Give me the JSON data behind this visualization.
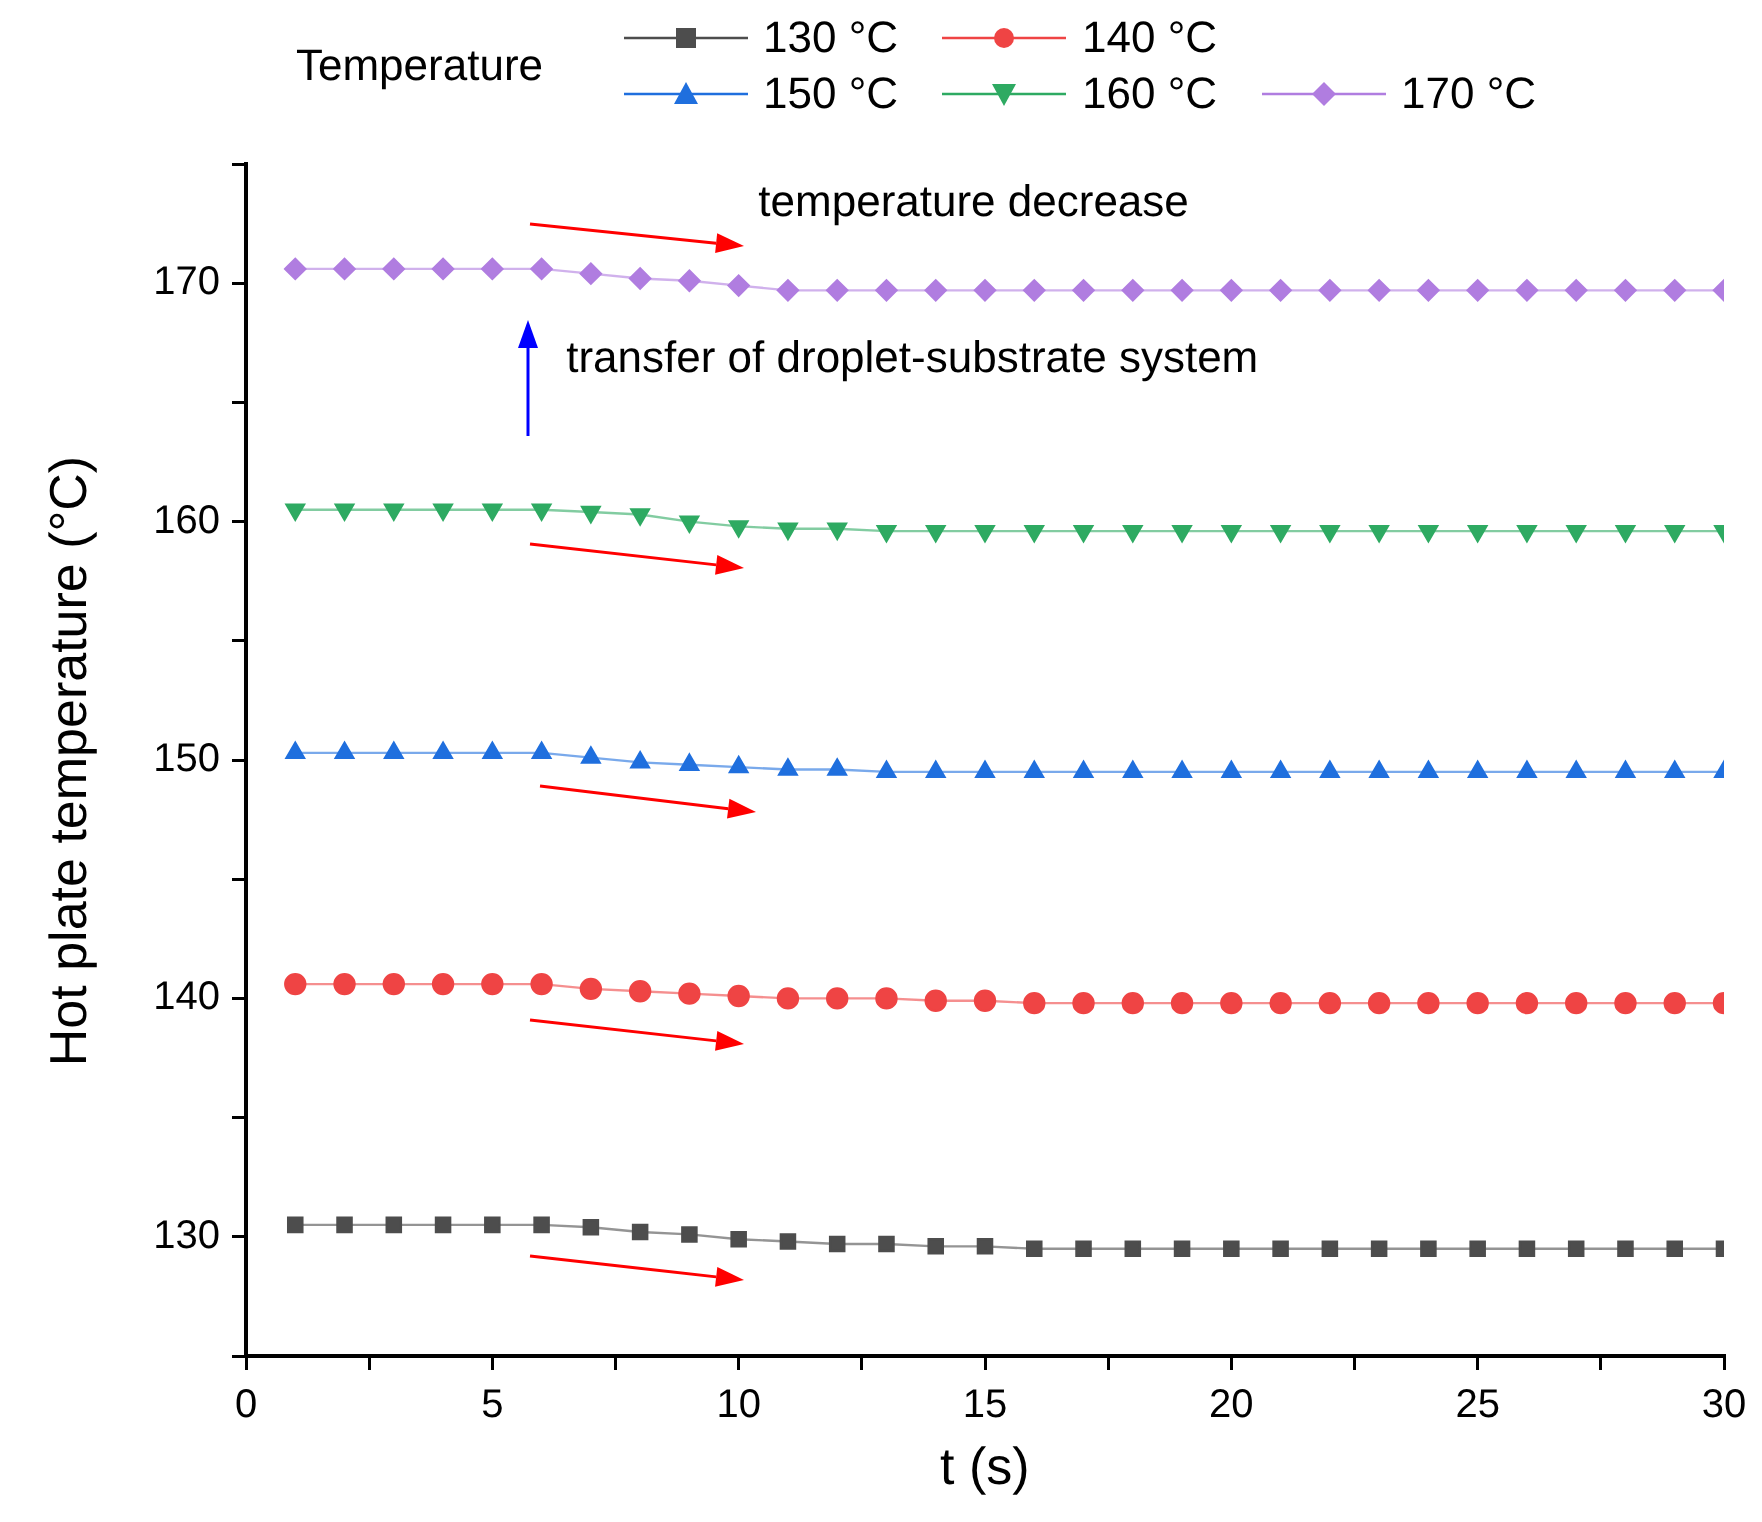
{
  "chart_data": {
    "type": "line",
    "xlabel": "t (s)",
    "ylabel": "Hot plate temperature (°C)",
    "legend_title": "Temperature",
    "legend": "top",
    "x": [
      1,
      2,
      3,
      4,
      5,
      6,
      7,
      8,
      9,
      10,
      11,
      12,
      13,
      14,
      15,
      16,
      17,
      18,
      19,
      20,
      21,
      22,
      23,
      24,
      25,
      26,
      27,
      28,
      29,
      30
    ],
    "series": [
      {
        "name": "130 °C",
        "color": "#4d4d4d",
        "marker": "square",
        "values": [
          130.5,
          130.5,
          130.5,
          130.5,
          130.5,
          130.5,
          130.4,
          130.2,
          130.1,
          129.9,
          129.8,
          129.7,
          129.7,
          129.6,
          129.6,
          129.5,
          129.5,
          129.5,
          129.5,
          129.5,
          129.5,
          129.5,
          129.5,
          129.5,
          129.5,
          129.5,
          129.5,
          129.5,
          129.5,
          129.5
        ]
      },
      {
        "name": "140 °C",
        "color": "#ef4444",
        "marker": "circle",
        "values": [
          140.6,
          140.6,
          140.6,
          140.6,
          140.6,
          140.6,
          140.4,
          140.3,
          140.2,
          140.1,
          140.0,
          140.0,
          140.0,
          139.9,
          139.9,
          139.8,
          139.8,
          139.8,
          139.8,
          139.8,
          139.8,
          139.8,
          139.8,
          139.8,
          139.8,
          139.8,
          139.8,
          139.8,
          139.8,
          139.8
        ]
      },
      {
        "name": "150 °C",
        "color": "#1f6fde",
        "marker": "triangle",
        "values": [
          150.3,
          150.3,
          150.3,
          150.3,
          150.3,
          150.3,
          150.1,
          149.9,
          149.8,
          149.7,
          149.6,
          149.6,
          149.5,
          149.5,
          149.5,
          149.5,
          149.5,
          149.5,
          149.5,
          149.5,
          149.5,
          149.5,
          149.5,
          149.5,
          149.5,
          149.5,
          149.5,
          149.5,
          149.5,
          149.5
        ]
      },
      {
        "name": "160 °C",
        "color": "#2eaa62",
        "marker": "triangle_down",
        "values": [
          160.5,
          160.5,
          160.5,
          160.5,
          160.5,
          160.5,
          160.4,
          160.3,
          160.0,
          159.8,
          159.7,
          159.7,
          159.6,
          159.6,
          159.6,
          159.6,
          159.6,
          159.6,
          159.6,
          159.6,
          159.6,
          159.6,
          159.6,
          159.6,
          159.6,
          159.6,
          159.6,
          159.6,
          159.6,
          159.6
        ]
      },
      {
        "name": "170 °C",
        "color": "#b07de0",
        "marker": "diamond",
        "values": [
          170.6,
          170.6,
          170.6,
          170.6,
          170.6,
          170.6,
          170.4,
          170.2,
          170.1,
          169.9,
          169.7,
          169.7,
          169.7,
          169.7,
          169.7,
          169.7,
          169.7,
          169.7,
          169.7,
          169.7,
          169.7,
          169.7,
          169.7,
          169.7,
          169.7,
          169.7,
          169.7,
          169.7,
          169.7,
          169.7
        ]
      }
    ],
    "xlim": [
      0,
      30
    ],
    "xticks": [
      0,
      {
        "value": 2.5,
        "label": null
      },
      5,
      {
        "value": 7.5,
        "label": null
      },
      10,
      {
        "value": 12.5,
        "label": null
      },
      15,
      {
        "value": 17.5,
        "label": null
      },
      20,
      {
        "value": 22.5,
        "label": null
      },
      25,
      {
        "value": 27.5,
        "label": null
      },
      30
    ],
    "ylim": [
      125,
      175
    ],
    "yticks": [
      {
        "value": 125,
        "label": null
      },
      130,
      {
        "value": 135,
        "label": null
      },
      140,
      {
        "value": 145,
        "label": null
      },
      150,
      {
        "value": 155,
        "label": null
      },
      160,
      {
        "value": 165,
        "label": null
      },
      170,
      {
        "value": 175,
        "label": null
      }
    ],
    "grid": false,
    "line_style": "solid",
    "annotations": [
      "temperature decrease",
      "transfer of droplet-substrate system"
    ]
  }
}
